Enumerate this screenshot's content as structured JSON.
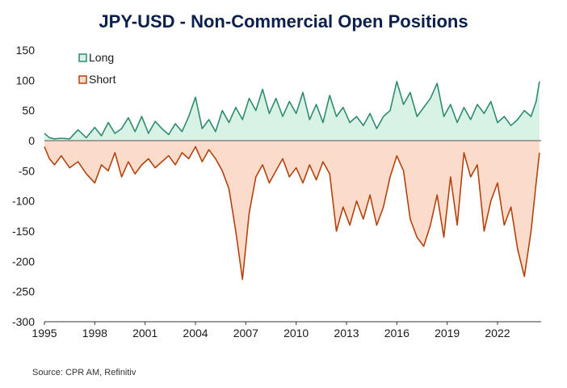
{
  "chart_data": {
    "type": "area",
    "title": "JPY-USD - Non-Commercial Open Positions",
    "source": "Source: CPR AM, Refinitiv",
    "x_ticks": [
      "1995",
      "1998",
      "2001",
      "2004",
      "2007",
      "2010",
      "2013",
      "2016",
      "2019",
      "2022"
    ],
    "x_range": [
      1995,
      2024.6
    ],
    "ylim": [
      -300,
      150
    ],
    "y_ticks": [
      150,
      100,
      50,
      0,
      -50,
      -100,
      -150,
      -200,
      -250,
      -300
    ],
    "grid": false,
    "legend": "top-left",
    "colors": {
      "Long": "#2e8b6e",
      "Long_fill": "#d9f2e6",
      "Short": "#b5420e",
      "Short_fill": "#fbdccb"
    },
    "series": [
      {
        "name": "Long",
        "x": [
          1995.0,
          1995.3,
          1995.6,
          1996.0,
          1996.5,
          1997.0,
          1997.5,
          1998.0,
          1998.4,
          1998.8,
          1999.2,
          1999.6,
          2000.0,
          2000.4,
          2000.8,
          2001.2,
          2001.6,
          2002.0,
          2002.4,
          2002.8,
          2003.2,
          2003.6,
          2004.0,
          2004.4,
          2004.8,
          2005.2,
          2005.6,
          2006.0,
          2006.4,
          2006.8,
          2007.2,
          2007.6,
          2008.0,
          2008.4,
          2008.8,
          2009.2,
          2009.6,
          2010.0,
          2010.4,
          2010.8,
          2011.2,
          2011.6,
          2012.0,
          2012.4,
          2012.8,
          2013.2,
          2013.6,
          2014.0,
          2014.4,
          2014.8,
          2015.2,
          2015.6,
          2016.0,
          2016.4,
          2016.8,
          2017.2,
          2017.6,
          2018.0,
          2018.4,
          2018.8,
          2019.2,
          2019.6,
          2020.0,
          2020.4,
          2020.8,
          2021.2,
          2021.6,
          2022.0,
          2022.4,
          2022.8,
          2023.2,
          2023.6,
          2024.0,
          2024.3,
          2024.5
        ],
        "values": [
          12,
          5,
          3,
          4,
          3,
          18,
          5,
          22,
          8,
          30,
          12,
          20,
          38,
          15,
          40,
          12,
          32,
          20,
          10,
          28,
          15,
          40,
          72,
          20,
          35,
          15,
          50,
          30,
          55,
          35,
          70,
          50,
          85,
          45,
          70,
          40,
          65,
          45,
          80,
          35,
          60,
          30,
          75,
          40,
          55,
          30,
          40,
          25,
          45,
          20,
          40,
          50,
          98,
          60,
          80,
          40,
          55,
          70,
          95,
          40,
          60,
          30,
          55,
          35,
          60,
          45,
          65,
          30,
          40,
          25,
          35,
          50,
          40,
          65,
          98
        ]
      },
      {
        "name": "Short",
        "x": [
          1995.0,
          1995.3,
          1995.6,
          1996.0,
          1996.5,
          1997.0,
          1997.5,
          1998.0,
          1998.4,
          1998.8,
          1999.2,
          1999.6,
          2000.0,
          2000.4,
          2000.8,
          2001.2,
          2001.6,
          2002.0,
          2002.4,
          2002.8,
          2003.2,
          2003.6,
          2004.0,
          2004.4,
          2004.8,
          2005.2,
          2005.6,
          2006.0,
          2006.4,
          2006.8,
          2007.2,
          2007.6,
          2008.0,
          2008.4,
          2008.8,
          2009.2,
          2009.6,
          2010.0,
          2010.4,
          2010.8,
          2011.2,
          2011.6,
          2012.0,
          2012.4,
          2012.8,
          2013.2,
          2013.6,
          2014.0,
          2014.4,
          2014.8,
          2015.2,
          2015.6,
          2016.0,
          2016.4,
          2016.8,
          2017.2,
          2017.6,
          2018.0,
          2018.4,
          2018.8,
          2019.2,
          2019.6,
          2020.0,
          2020.4,
          2020.8,
          2021.2,
          2021.6,
          2022.0,
          2022.4,
          2022.8,
          2023.2,
          2023.6,
          2024.0,
          2024.3,
          2024.5
        ],
        "values": [
          -10,
          -30,
          -40,
          -25,
          -45,
          -35,
          -55,
          -70,
          -40,
          -50,
          -20,
          -60,
          -35,
          -55,
          -40,
          -30,
          -45,
          -35,
          -25,
          -40,
          -20,
          -30,
          -10,
          -35,
          -15,
          -30,
          -50,
          -80,
          -150,
          -230,
          -120,
          -60,
          -40,
          -70,
          -50,
          -30,
          -60,
          -45,
          -70,
          -40,
          -65,
          -35,
          -55,
          -150,
          -110,
          -140,
          -100,
          -130,
          -90,
          -140,
          -110,
          -60,
          -25,
          -50,
          -130,
          -160,
          -175,
          -140,
          -90,
          -160,
          -60,
          -140,
          -20,
          -60,
          -40,
          -150,
          -100,
          -70,
          -140,
          -110,
          -180,
          -225,
          -150,
          -70,
          -20
        ]
      }
    ]
  }
}
